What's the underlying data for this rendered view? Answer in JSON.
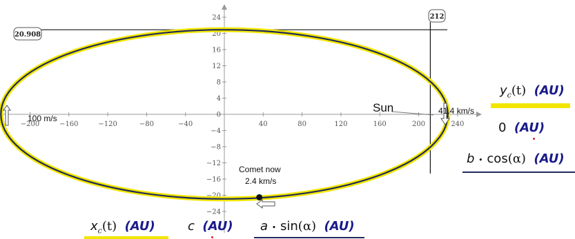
{
  "chart_data": {
    "type": "line",
    "title": "",
    "xlabel": "",
    "ylabel": "",
    "xlim": [
      -240,
      240
    ],
    "ylim": [
      -24,
      24
    ],
    "x_ticks": [
      -200,
      -160,
      -120,
      -80,
      -40,
      0,
      40,
      80,
      120,
      160,
      200,
      240
    ],
    "y_ticks": [
      -24,
      -20,
      -16,
      -12,
      -8,
      -4,
      0,
      4,
      8,
      12,
      16,
      20,
      24
    ],
    "ellipse": {
      "a": 230,
      "b": 20.908,
      "center": [
        0,
        0
      ]
    },
    "series": [
      {
        "name": "x_c(t) (AU), y_c(t) (AU)",
        "color": "#f2e600"
      },
      {
        "name": "a·sin(α) (AU), b·cos(α) (AU)",
        "color": "#1f2a5c"
      },
      {
        "name": "c (AU), 0 (AU)",
        "color": "#e02020",
        "x": 212,
        "y": 0
      }
    ],
    "markers": {
      "horizontal_line_y": 20.908,
      "horizontal_label": "20.908",
      "vertical_line_x": 212,
      "vertical_label": "212",
      "comet": {
        "x": 36,
        "y": -20.5
      }
    },
    "annotations": {
      "sun": "Sun",
      "aphelion_speed": "100 m/s",
      "perihelion_speed": "41.4 km/s",
      "comet_label_1": "Comet now",
      "comet_label_2": "2.4 km/s"
    }
  },
  "legend": {
    "right": {
      "y": {
        "var": "y",
        "sub": "c",
        "arg": "(t)",
        "unit": "(AU)"
      },
      "zero": {
        "expr": "0",
        "unit": "(AU)"
      },
      "bcos": {
        "var": "b",
        "dot": "•",
        "fn": "cos",
        "arg": "(α)",
        "unit": "(AU)"
      }
    },
    "bottom": {
      "x": {
        "var": "x",
        "sub": "c",
        "arg": "(t)",
        "unit": "(AU)"
      },
      "c": {
        "var": "c",
        "unit": "(AU)"
      },
      "asin": {
        "var": "a",
        "dot": "•",
        "fn": "sin",
        "arg": "(α)",
        "unit": "(AU)"
      }
    }
  }
}
